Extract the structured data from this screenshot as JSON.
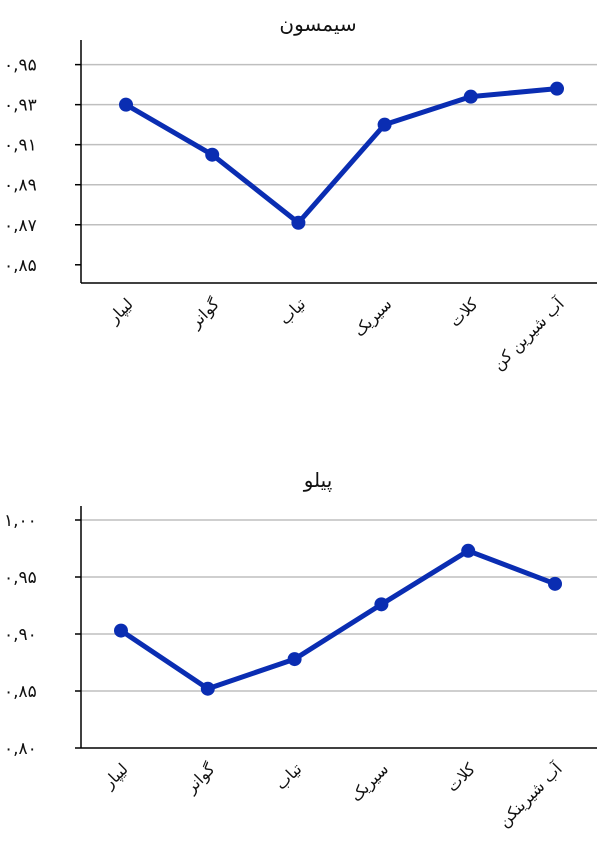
{
  "colors": {
    "line": "#0a2db2",
    "grid": "#bfbfbf",
    "axis": "#000000"
  },
  "chart_data": [
    {
      "type": "line",
      "title": "سیمسون",
      "categories": [
        "لیپار",
        "گوانر",
        "تیاب",
        "سیریک",
        "کلات",
        "آب شیرین کن"
      ],
      "values": [
        0.93,
        0.905,
        0.871,
        0.92,
        0.934,
        0.938
      ],
      "ylim": [
        0.85,
        0.96
      ],
      "yticks": [
        0.85,
        0.87,
        0.89,
        0.91,
        0.93,
        0.95
      ],
      "ytick_labels": [
        "۰,۸۵",
        "۰,۸۷",
        "۰,۸۹",
        "۰,۹۱",
        "۰,۹۳",
        "۰,۹۵"
      ],
      "grid": true,
      "legend": "none"
    },
    {
      "type": "line",
      "title": "پیلو",
      "categories": [
        "لیپار",
        "گوانر",
        "تیاب",
        "سیریک",
        "کلات",
        "آب شیرینکن"
      ],
      "values": [
        0.903,
        0.852,
        0.878,
        0.926,
        0.973,
        0.944
      ],
      "ylim": [
        0.8,
        1.0
      ],
      "yticks": [
        0.8,
        0.85,
        0.9,
        0.95,
        1.0
      ],
      "ytick_labels": [
        "۰,۸۰",
        "۰,۸۵",
        "۰,۹۰",
        "۰,۹۵",
        "۱,۰۰"
      ],
      "grid": true,
      "legend": "none"
    }
  ]
}
